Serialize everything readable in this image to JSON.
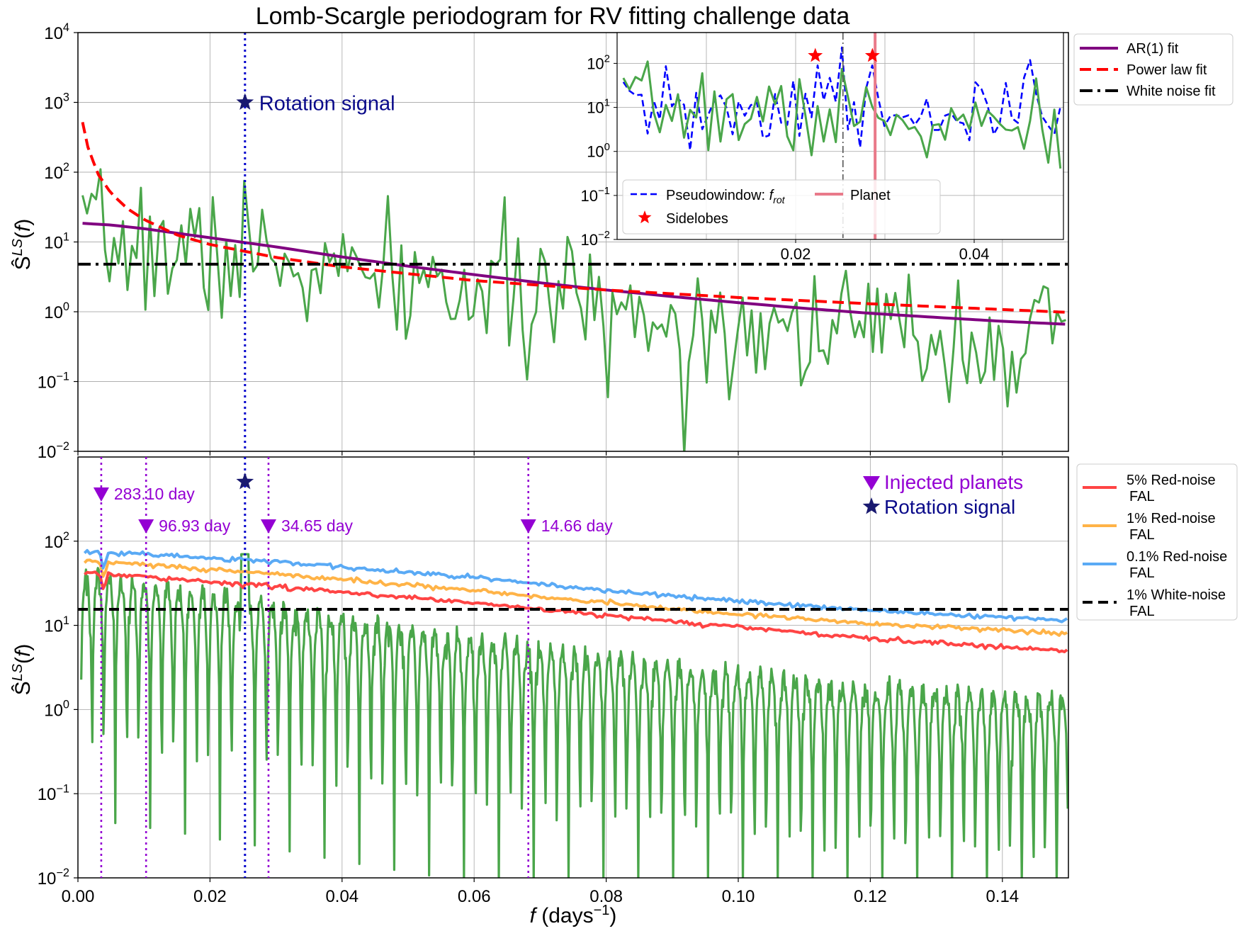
{
  "figure": {
    "title": "Lomb-Scargle periodogram for RV fitting challenge data",
    "xlabel": "f (days⁻¹)",
    "ylabel": "Ŝ^LS(f)"
  },
  "chart_data": [
    {
      "panel": "top",
      "type": "line",
      "yscale": "log",
      "xlim": [
        0.0,
        0.15
      ],
      "ylim": [
        0.01,
        10000
      ],
      "grid": true,
      "xticks": [
        "0.00",
        "0.02",
        "0.04",
        "0.06",
        "0.08",
        "0.10",
        "0.12",
        "0.14"
      ],
      "xticks_visible": false,
      "yticks": [
        "10^-2",
        "10^-1",
        "10^0",
        "10^1",
        "10^2",
        "10^3",
        "10^4"
      ],
      "ylabel": "Ŝ^LS(f)",
      "legend_position": "outside top-right",
      "series": [
        {
          "name": "AR(1) fit",
          "color": "#800080",
          "style": "solid",
          "x": [
            0.0007,
            0.005,
            0.01,
            0.02,
            0.03,
            0.04,
            0.05,
            0.06,
            0.07,
            0.08,
            0.09,
            0.1,
            0.11,
            0.12,
            0.13,
            0.14,
            0.15
          ],
          "y": [
            18.5,
            17.5,
            15.5,
            11.5,
            8.5,
            6.1,
            4.5,
            3.4,
            2.6,
            2.05,
            1.65,
            1.35,
            1.12,
            0.95,
            0.83,
            0.73,
            0.66
          ]
        },
        {
          "name": "Power law fit",
          "color": "#ff0000",
          "style": "dashed",
          "x": [
            0.0007,
            0.0015,
            0.003,
            0.005,
            0.0075,
            0.01,
            0.015,
            0.02,
            0.03,
            0.04,
            0.06,
            0.08,
            0.1,
            0.12,
            0.15
          ],
          "y": [
            520,
            230,
            95,
            50,
            30,
            21,
            12.6,
            9.2,
            6.0,
            4.4,
            2.8,
            2.05,
            1.6,
            1.3,
            0.98
          ]
        },
        {
          "name": "White noise fit",
          "color": "#000000",
          "style": "dashdot",
          "x": [
            0.0,
            0.15
          ],
          "y": [
            4.8,
            4.8
          ]
        }
      ],
      "lines": [
        {
          "label": "LS periodogram",
          "color": "#4aa64a"
        }
      ],
      "vlines": [
        {
          "x": 0.0253,
          "color": "#0000cc",
          "style": "dotted"
        }
      ],
      "annotations": [
        {
          "text": "Rotation signal",
          "x": 0.0253,
          "y": 1000,
          "marker": "star",
          "color": "#191970"
        }
      ]
    },
    {
      "panel": "inset",
      "type": "line",
      "yscale": "log",
      "xlim": [
        0.0,
        0.05
      ],
      "ylim": [
        0.01,
        500
      ],
      "grid": true,
      "xticks": [
        "0.02",
        "0.04"
      ],
      "yticks": [
        "10^-2",
        "10^-1",
        "10^0",
        "10^1",
        "10^2"
      ],
      "legend_position": "lower center",
      "series": [
        {
          "name": "Pseudowindow: f_rot",
          "color": "#0000ff",
          "style": "dashed"
        },
        {
          "name": "Sidelobes",
          "color": "#ff0000",
          "marker": "star",
          "x": [
            0.0222,
            0.0286
          ],
          "y": [
            150,
            150
          ]
        },
        {
          "name": "Planet",
          "color": "#e97a8a",
          "style": "solid",
          "x": [
            0.0289,
            0.0289
          ]
        }
      ],
      "vlines": [
        {
          "x": 0.0253,
          "color": "#555555",
          "style": "dashdot"
        }
      ]
    },
    {
      "panel": "bottom",
      "type": "line",
      "yscale": "log",
      "xlim": [
        0.0,
        0.15
      ],
      "ylim": [
        0.01,
        1000
      ],
      "grid": true,
      "xticks": [
        "0.00",
        "0.02",
        "0.04",
        "0.06",
        "0.08",
        "0.10",
        "0.12",
        "0.14"
      ],
      "yticks": [
        "10^-2",
        "10^-1",
        "10^0",
        "10^1",
        "10^2"
      ],
      "xlabel": "f (days⁻¹)",
      "ylabel": "Ŝ^LS(f)",
      "legend_position": "outside top-right",
      "series": [
        {
          "name": "5% Red-noise\nFAL",
          "color": "#ff4444",
          "style": "solid",
          "x": [
            0.001,
            0.01,
            0.02,
            0.03,
            0.04,
            0.06,
            0.08,
            0.1,
            0.12,
            0.15
          ],
          "y": [
            42,
            38,
            33,
            29,
            25,
            18.5,
            13,
            9.5,
            7,
            5
          ]
        },
        {
          "name": "1% Red-noise\nFAL",
          "color": "#ffb347",
          "style": "solid",
          "x": [
            0.001,
            0.01,
            0.02,
            0.03,
            0.04,
            0.06,
            0.08,
            0.1,
            0.12,
            0.15
          ],
          "y": [
            58,
            53,
            46,
            41,
            35,
            26,
            18.5,
            13.5,
            10.5,
            8
          ]
        },
        {
          "name": "0.1% Red-noise\nFAL",
          "color": "#5aaaf5",
          "style": "solid",
          "x": [
            0.001,
            0.01,
            0.02,
            0.03,
            0.04,
            0.06,
            0.08,
            0.1,
            0.12,
            0.15
          ],
          "y": [
            75,
            70,
            63,
            57,
            49,
            37,
            26,
            19.5,
            15,
            11.5
          ]
        },
        {
          "name": "1% White-noise\nFAL",
          "color": "#000000",
          "style": "dashed",
          "x": [
            0.0,
            0.15
          ],
          "y": [
            15.5,
            15.5
          ]
        }
      ],
      "planets": [
        {
          "label": "283.10 day",
          "x": 0.00353
        },
        {
          "label": "96.93 day",
          "x": 0.01032
        },
        {
          "label": "34.65 day",
          "x": 0.02886
        },
        {
          "label": "14.66 day",
          "x": 0.06821
        }
      ],
      "rotation_x": 0.0253,
      "annotations": [
        {
          "text": "Injected planets",
          "marker": "triangle-down",
          "color": "#9400d3"
        },
        {
          "text": "Rotation signal",
          "marker": "star",
          "color": "#191970"
        }
      ]
    }
  ],
  "colors": {
    "periodogram": "#4aa64a",
    "rotation": "#191970",
    "planet_marker": "#9400d3",
    "rotation_vline": "#0000cc"
  }
}
